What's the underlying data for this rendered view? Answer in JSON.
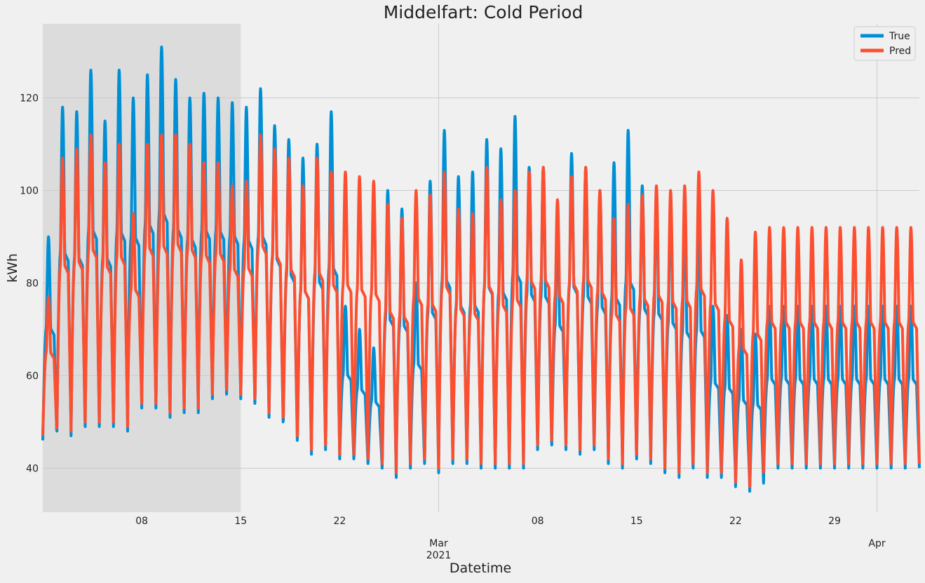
{
  "chart_data": {
    "type": "line",
    "title": "Middelfart: Cold Period",
    "xlabel": "Datetime",
    "ylabel": "kWh",
    "x_range": [
      "2021-02-01",
      "2021-04-04"
    ],
    "ylim": [
      30.5,
      136
    ],
    "y_ticks": [
      40,
      60,
      80,
      100,
      120
    ],
    "x_ticks": [
      {
        "date": "2021-02-08",
        "label": "08"
      },
      {
        "date": "2021-02-15",
        "label": "15"
      },
      {
        "date": "2021-02-22",
        "label": "22"
      },
      {
        "date": "2021-03-01",
        "label": "Mar",
        "sublabel": "2021"
      },
      {
        "date": "2021-03-08",
        "label": "08"
      },
      {
        "date": "2021-03-15",
        "label": "15"
      },
      {
        "date": "2021-03-22",
        "label": "22"
      },
      {
        "date": "2021-03-29",
        "label": "29"
      },
      {
        "date": "2021-04-01",
        "label": "Apr"
      }
    ],
    "highlight_span": {
      "start": "2021-02-01",
      "end": "2021-02-15"
    },
    "grid": true,
    "legend_position": "top-right",
    "series": [
      {
        "name": "True",
        "color": "#008fd5",
        "daily_peaks": [
          90,
          118,
          117,
          126,
          115,
          126,
          120,
          125,
          131,
          124,
          120,
          121,
          120,
          119,
          118,
          122,
          114,
          111,
          107,
          110,
          117,
          75,
          70,
          66,
          100,
          96,
          80,
          102,
          113,
          103,
          104,
          111,
          109,
          116,
          105,
          105,
          92,
          108,
          105,
          100,
          106,
          113,
          101,
          100,
          98,
          95,
          94,
          75,
          73,
          70,
          69,
          75
        ],
        "daily_troughs": [
          46,
          48,
          47,
          49,
          49,
          48,
          53,
          53,
          51,
          52,
          52,
          55,
          56,
          55,
          54,
          51,
          50,
          46,
          43,
          44,
          42,
          42,
          41,
          40,
          38,
          40,
          41,
          39,
          41,
          41,
          40,
          40,
          40,
          40,
          44,
          43,
          45,
          44,
          43,
          44,
          41,
          40,
          42,
          41,
          39,
          38,
          40,
          38,
          38,
          36,
          35,
          40
        ]
      },
      {
        "name": "Pred",
        "color": "#fc4f30",
        "daily_peaks": [
          77,
          107,
          109,
          112,
          106,
          110,
          95,
          110,
          112,
          112,
          110,
          106,
          106,
          101,
          102,
          112,
          109,
          107,
          101,
          107,
          104,
          104,
          103,
          102,
          97,
          94,
          100,
          99,
          104,
          96,
          95,
          105,
          98,
          100,
          104,
          105,
          98,
          103,
          105,
          100,
          94,
          97,
          99,
          101,
          100,
          101,
          104,
          100,
          94,
          85,
          91,
          92
        ]
      }
    ]
  }
}
